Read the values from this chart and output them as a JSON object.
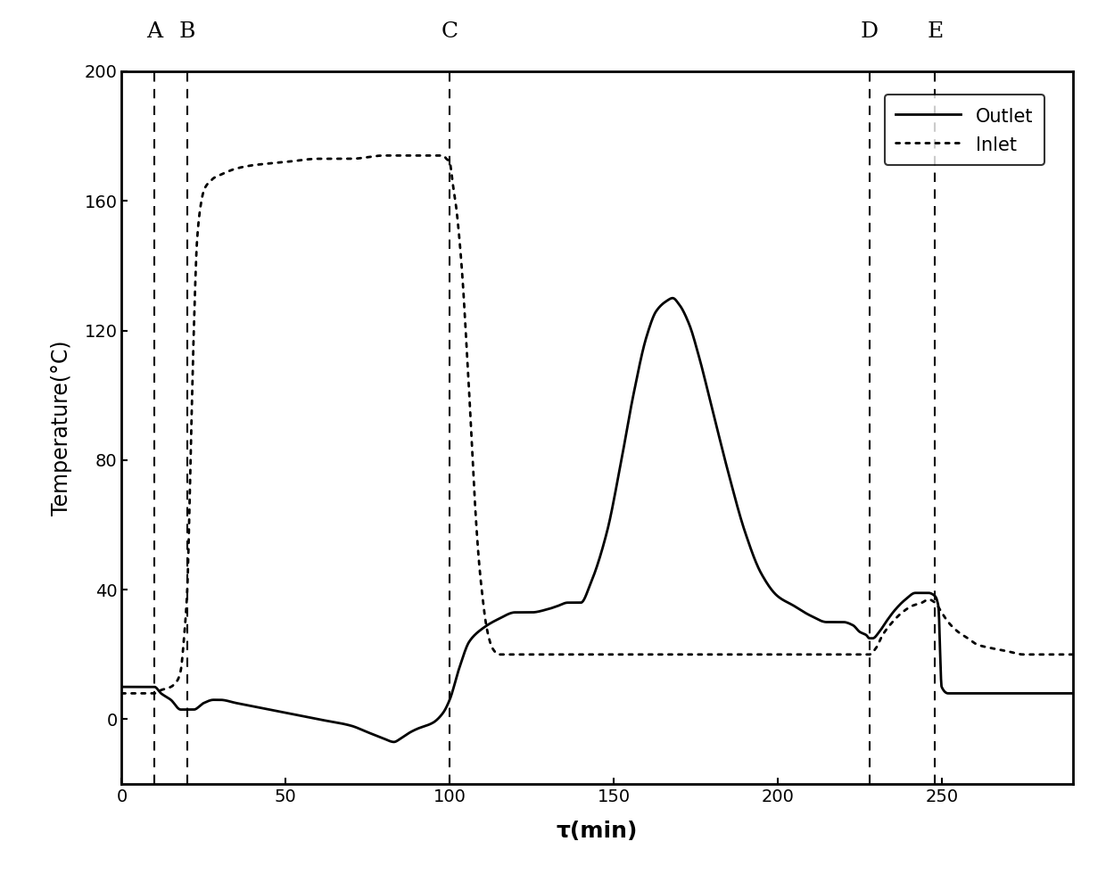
{
  "title": "",
  "xlabel": "τ(min)",
  "ylabel": "Temperature(°C)",
  "xlim": [
    0,
    290
  ],
  "ylim": [
    -20,
    200
  ],
  "yticks": [
    0,
    40,
    80,
    120,
    160,
    200
  ],
  "xticks": [
    0,
    50,
    100,
    150,
    200,
    250
  ],
  "vlines": {
    "A": 10,
    "B": 20,
    "C": 100,
    "D": 228,
    "E": 248
  },
  "background_color": "#ffffff",
  "line_color": "#000000",
  "legend_labels": [
    "Outlet",
    "Inlet"
  ],
  "outlet_pts": [
    [
      0,
      10
    ],
    [
      5,
      10
    ],
    [
      10,
      10
    ],
    [
      12,
      8
    ],
    [
      15,
      6
    ],
    [
      18,
      3
    ],
    [
      20,
      3
    ],
    [
      22,
      3
    ],
    [
      25,
      5
    ],
    [
      28,
      6
    ],
    [
      30,
      6
    ],
    [
      35,
      5
    ],
    [
      40,
      4
    ],
    [
      50,
      2
    ],
    [
      60,
      0
    ],
    [
      70,
      -2
    ],
    [
      75,
      -4
    ],
    [
      80,
      -6
    ],
    [
      83,
      -7
    ],
    [
      85,
      -6
    ],
    [
      88,
      -4
    ],
    [
      90,
      -3
    ],
    [
      95,
      -1
    ],
    [
      98,
      2
    ],
    [
      100,
      6
    ],
    [
      103,
      16
    ],
    [
      106,
      24
    ],
    [
      110,
      28
    ],
    [
      115,
      31
    ],
    [
      120,
      33
    ],
    [
      125,
      33
    ],
    [
      130,
      34
    ],
    [
      133,
      35
    ],
    [
      136,
      36
    ],
    [
      138,
      36
    ],
    [
      140,
      36
    ],
    [
      143,
      42
    ],
    [
      148,
      58
    ],
    [
      152,
      78
    ],
    [
      156,
      100
    ],
    [
      160,
      118
    ],
    [
      163,
      126
    ],
    [
      166,
      129
    ],
    [
      168,
      130
    ],
    [
      170,
      128
    ],
    [
      173,
      122
    ],
    [
      176,
      112
    ],
    [
      180,
      96
    ],
    [
      185,
      76
    ],
    [
      190,
      58
    ],
    [
      195,
      45
    ],
    [
      200,
      38
    ],
    [
      205,
      35
    ],
    [
      210,
      32
    ],
    [
      215,
      30
    ],
    [
      220,
      30
    ],
    [
      223,
      29
    ],
    [
      225,
      27
    ],
    [
      227,
      26
    ],
    [
      228,
      25
    ],
    [
      229,
      25
    ],
    [
      231,
      27
    ],
    [
      233,
      30
    ],
    [
      236,
      34
    ],
    [
      239,
      37
    ],
    [
      242,
      39
    ],
    [
      244,
      39
    ],
    [
      246,
      39
    ],
    [
      248,
      38
    ],
    [
      249,
      35
    ],
    [
      250,
      10
    ],
    [
      252,
      8
    ],
    [
      255,
      8
    ],
    [
      260,
      8
    ],
    [
      265,
      8
    ],
    [
      270,
      8
    ],
    [
      275,
      8
    ],
    [
      280,
      8
    ],
    [
      285,
      8
    ],
    [
      290,
      8
    ]
  ],
  "inlet_pts": [
    [
      0,
      8
    ],
    [
      5,
      8
    ],
    [
      8,
      8
    ],
    [
      10,
      8
    ],
    [
      12,
      9
    ],
    [
      15,
      10
    ],
    [
      17,
      12
    ],
    [
      18,
      15
    ],
    [
      19,
      25
    ],
    [
      20,
      40
    ],
    [
      21,
      80
    ],
    [
      22,
      120
    ],
    [
      23,
      148
    ],
    [
      24,
      158
    ],
    [
      25,
      163
    ],
    [
      26,
      165
    ],
    [
      27,
      166
    ],
    [
      28,
      167
    ],
    [
      30,
      168
    ],
    [
      35,
      170
    ],
    [
      40,
      171
    ],
    [
      50,
      172
    ],
    [
      60,
      173
    ],
    [
      70,
      173
    ],
    [
      80,
      174
    ],
    [
      90,
      174
    ],
    [
      95,
      174
    ],
    [
      98,
      174
    ],
    [
      99,
      173
    ],
    [
      100,
      172
    ],
    [
      101,
      165
    ],
    [
      102,
      158
    ],
    [
      103,
      148
    ],
    [
      104,
      135
    ],
    [
      105,
      118
    ],
    [
      106,
      100
    ],
    [
      107,
      80
    ],
    [
      108,
      62
    ],
    [
      109,
      48
    ],
    [
      110,
      38
    ],
    [
      111,
      30
    ],
    [
      112,
      25
    ],
    [
      113,
      22
    ],
    [
      115,
      20
    ],
    [
      120,
      20
    ],
    [
      130,
      20
    ],
    [
      140,
      20
    ],
    [
      150,
      20
    ],
    [
      160,
      20
    ],
    [
      170,
      20
    ],
    [
      180,
      20
    ],
    [
      190,
      20
    ],
    [
      200,
      20
    ],
    [
      210,
      20
    ],
    [
      220,
      20
    ],
    [
      225,
      20
    ],
    [
      227,
      20
    ],
    [
      228,
      20
    ],
    [
      230,
      22
    ],
    [
      232,
      26
    ],
    [
      235,
      30
    ],
    [
      238,
      33
    ],
    [
      241,
      35
    ],
    [
      244,
      36
    ],
    [
      246,
      37
    ],
    [
      248,
      36
    ],
    [
      250,
      33
    ],
    [
      252,
      30
    ],
    [
      255,
      27
    ],
    [
      258,
      25
    ],
    [
      261,
      23
    ],
    [
      265,
      22
    ],
    [
      270,
      21
    ],
    [
      275,
      20
    ],
    [
      280,
      20
    ],
    [
      285,
      20
    ],
    [
      290,
      20
    ]
  ]
}
